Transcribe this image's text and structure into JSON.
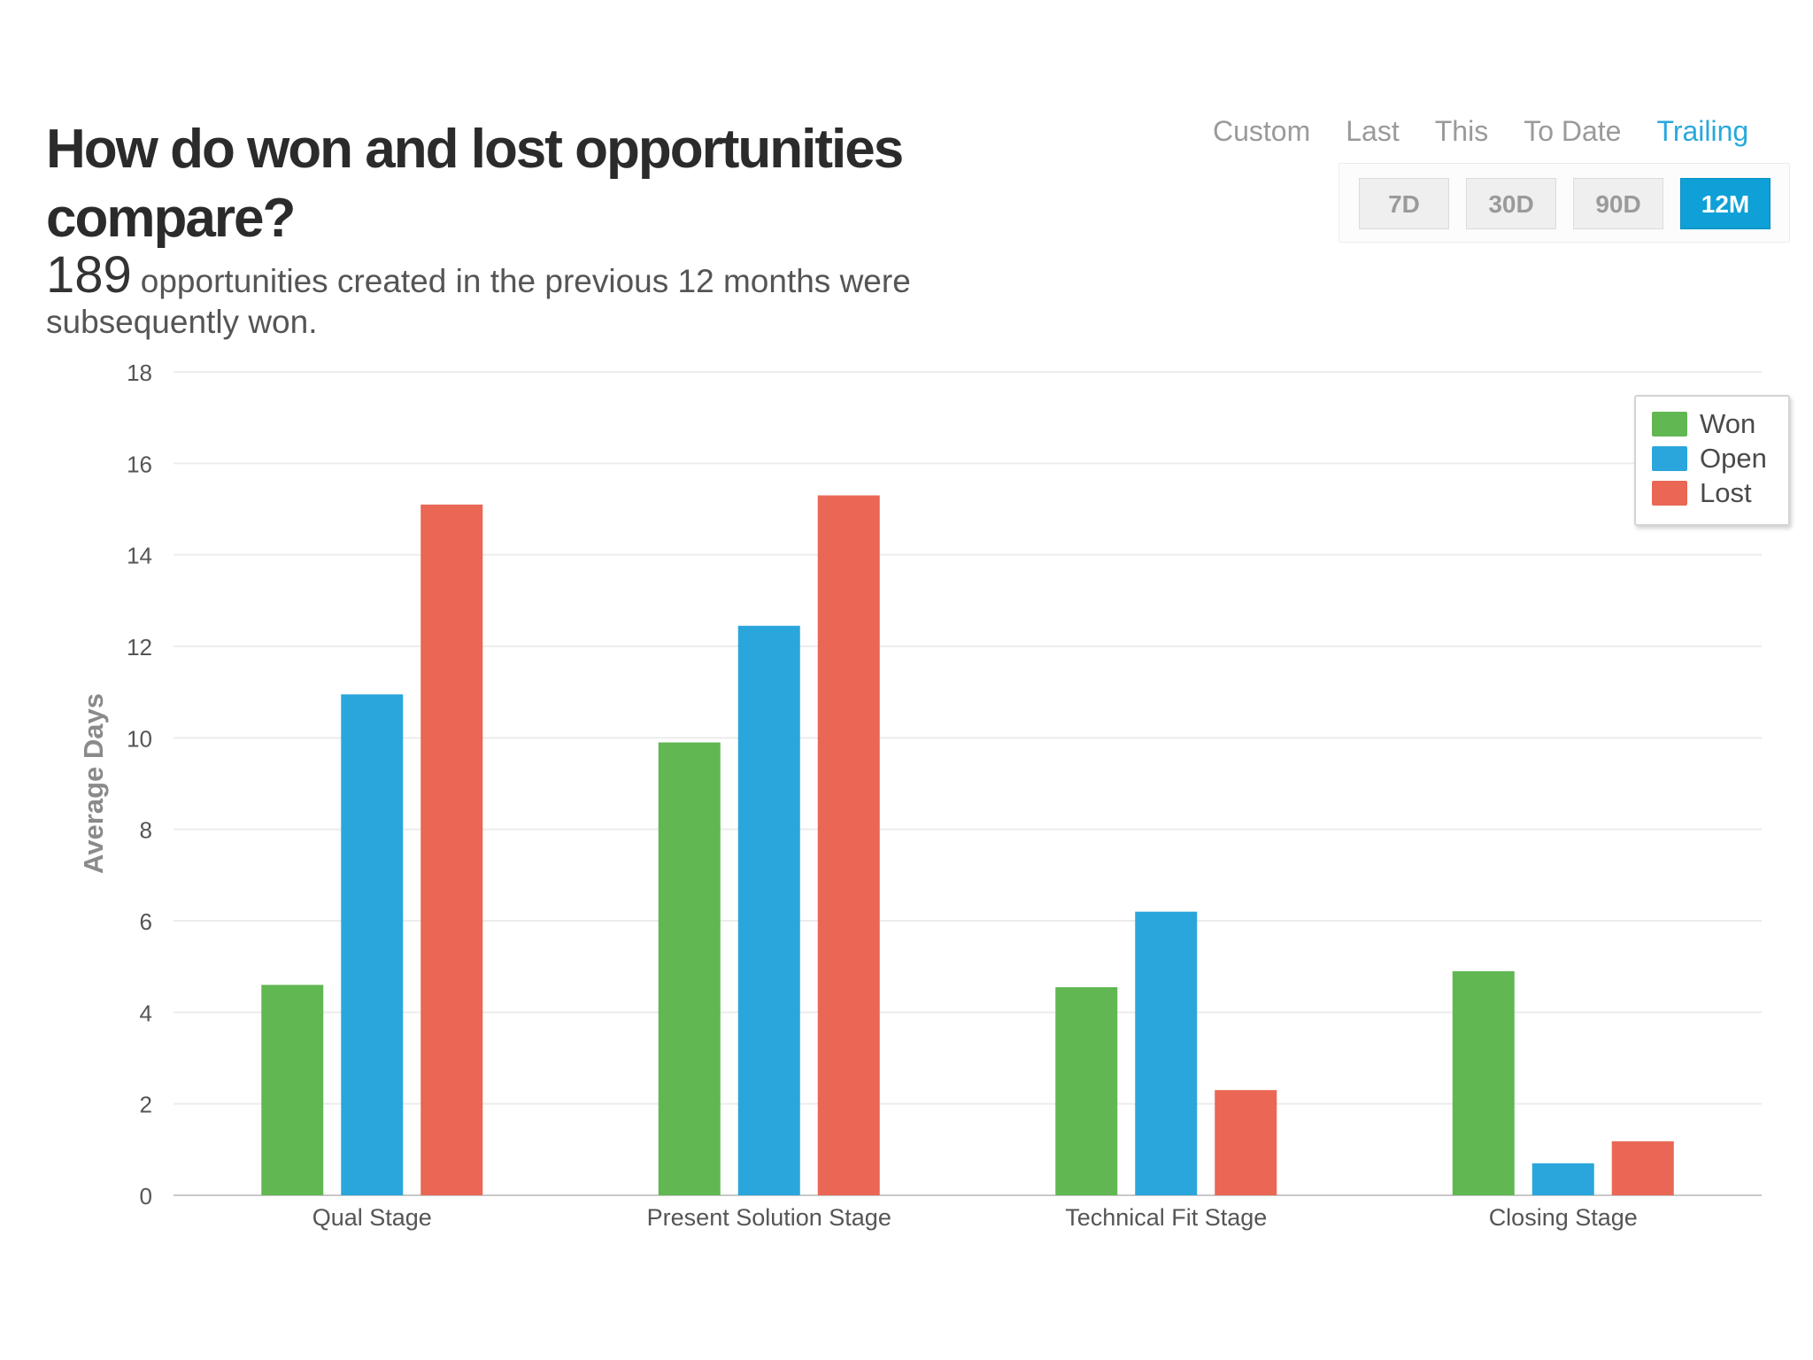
{
  "header": {
    "title": "How do won and lost opportunities compare?",
    "summary_count": "189",
    "summary_text": "opportunities created in the previous 12 months were subsequently won."
  },
  "period_tabs": [
    {
      "label": "Custom",
      "active": false
    },
    {
      "label": "Last",
      "active": false
    },
    {
      "label": "This",
      "active": false
    },
    {
      "label": "To Date",
      "active": false
    },
    {
      "label": "Trailing",
      "active": true
    }
  ],
  "range_buttons": [
    {
      "label": "7D",
      "active": false
    },
    {
      "label": "30D",
      "active": false
    },
    {
      "label": "90D",
      "active": false
    },
    {
      "label": "12M",
      "active": true
    }
  ],
  "colors": {
    "won": "#61b752",
    "open": "#2aa6dc",
    "lost": "#e96754",
    "grid": "#ececec",
    "axis_text": "#555555",
    "axis_title": "#8a8a8a"
  },
  "chart_data": {
    "type": "bar",
    "title": "",
    "ylabel": "Average Days",
    "xlabel": "",
    "ylim": [
      0,
      18
    ],
    "yticks": [
      0,
      2,
      4,
      6,
      8,
      10,
      12,
      14,
      16,
      18
    ],
    "grid": true,
    "legend_position": "top-right",
    "categories": [
      "Qual Stage",
      "Present Solution Stage",
      "Technical Fit Stage",
      "Closing Stage"
    ],
    "series": [
      {
        "name": "Won",
        "color": "#61b752",
        "values": [
          4.6,
          9.9,
          4.55,
          4.9
        ]
      },
      {
        "name": "Open",
        "color": "#2aa6dc",
        "values": [
          10.95,
          12.45,
          6.2,
          0.7
        ]
      },
      {
        "name": "Lost",
        "color": "#e96754",
        "values": [
          15.1,
          15.3,
          2.3,
          1.18
        ]
      }
    ]
  }
}
